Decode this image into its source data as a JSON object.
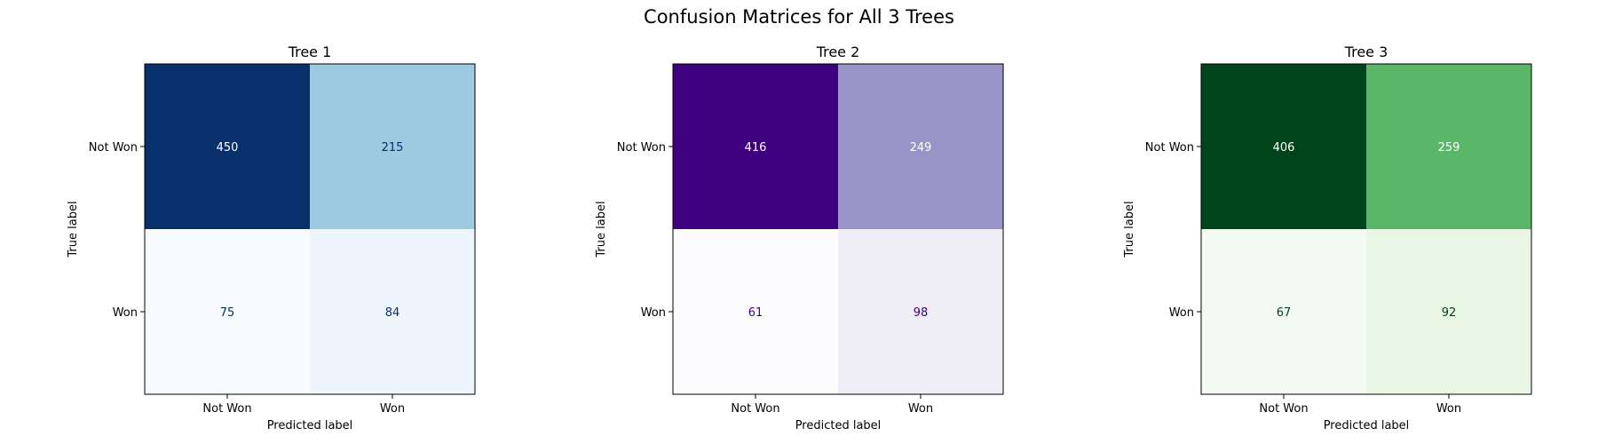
{
  "figure": {
    "title": "Confusion Matrices for All 3 Trees"
  },
  "chart_data": [
    {
      "type": "heatmap",
      "title": "Tree 1",
      "xlabel": "Predicted label",
      "ylabel": "True label",
      "x_categories": [
        "Not Won",
        "Won"
      ],
      "y_categories": [
        "Not Won",
        "Won"
      ],
      "values": [
        [
          450,
          215
        ],
        [
          75,
          84
        ]
      ],
      "colormap": "Blues",
      "cell_colors": [
        [
          "#08306b",
          "#9ecae1"
        ],
        [
          "#f7fbff",
          "#eff5fd"
        ]
      ],
      "text_colors": [
        [
          "#ffffff",
          "#08306b"
        ],
        [
          "#08306b",
          "#08306b"
        ]
      ]
    },
    {
      "type": "heatmap",
      "title": "Tree 2",
      "xlabel": "Predicted label",
      "ylabel": "True label",
      "x_categories": [
        "Not Won",
        "Won"
      ],
      "y_categories": [
        "Not Won",
        "Won"
      ],
      "values": [
        [
          416,
          249
        ],
        [
          61,
          98
        ]
      ],
      "colormap": "Purples",
      "cell_colors": [
        [
          "#3f007d",
          "#9894c6"
        ],
        [
          "#fcfbfd",
          "#efedf5"
        ]
      ],
      "text_colors": [
        [
          "#ffffff",
          "#ffffff"
        ],
        [
          "#3f007d",
          "#3f007d"
        ]
      ]
    },
    {
      "type": "heatmap",
      "title": "Tree 3",
      "xlabel": "Predicted label",
      "ylabel": "True label",
      "x_categories": [
        "Not Won",
        "Won"
      ],
      "y_categories": [
        "Not Won",
        "Won"
      ],
      "values": [
        [
          406,
          259
        ],
        [
          67,
          92
        ]
      ],
      "colormap": "Greens",
      "cell_colors": [
        [
          "#00441b",
          "#5ab769"
        ],
        [
          "#f3faf1",
          "#e9f6e5"
        ]
      ],
      "text_colors": [
        [
          "#ffffff",
          "#ffffff"
        ],
        [
          "#00441b",
          "#00441b"
        ]
      ]
    }
  ]
}
